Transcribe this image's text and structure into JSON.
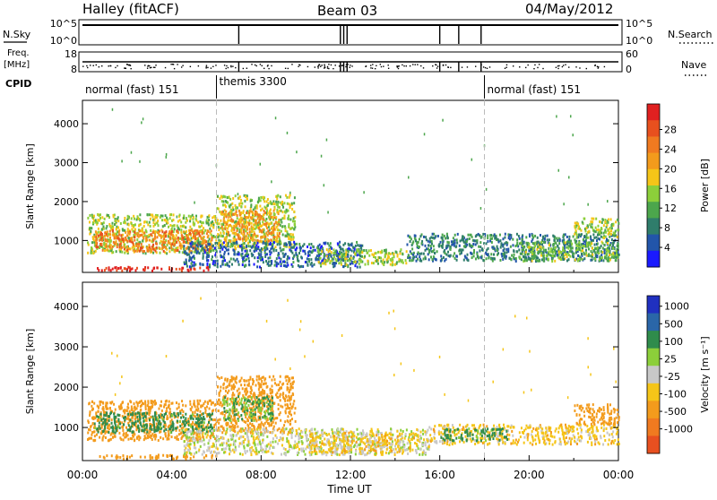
{
  "header": {
    "station": "Halley (fitACF)",
    "beam": "Beam 03",
    "date": "04/May/2012"
  },
  "status_panels": {
    "nsky_label": "N.Sky",
    "nsearch_label": "N.Search",
    "nsky_ticks": [
      "10^5",
      "10^0"
    ],
    "nsearch_ticks": [
      "10^5",
      "10^0"
    ],
    "freq_label_top": "Freq.",
    "freq_label_unit": "[MHz]",
    "freq_ticks": [
      "18",
      "8"
    ],
    "nave_label": "Nave",
    "nave_ticks": [
      "60",
      "0"
    ],
    "cpid_label": "CPID",
    "cpid_segments": [
      {
        "start_hour": 0,
        "end_hour": 6,
        "label": "normal (fast) 151"
      },
      {
        "start_hour": 6,
        "end_hour": 18,
        "label": "themis 3300"
      },
      {
        "start_hour": 18,
        "end_hour": 24,
        "label": "normal (fast) 151"
      }
    ],
    "data_gaps_hours": [
      7.0,
      11.55,
      11.7,
      11.85,
      16.0,
      16.85,
      17.85
    ]
  },
  "chart_data": [
    {
      "type": "heatmap",
      "name": "power",
      "ylabel": "Slant Range [km]",
      "xlabel": "Time UT",
      "xlim": [
        0,
        24
      ],
      "ylim": [
        180,
        4600
      ],
      "yticks": [
        "1000",
        "2000",
        "3000",
        "4000"
      ],
      "xticks": [
        "00:00",
        "04:00",
        "08:00",
        "12:00",
        "16:00",
        "20:00",
        "00:00"
      ],
      "colorbar_label": "Power [dB]",
      "colorbar_ticks": [
        "4",
        "8",
        "12",
        "16",
        "20",
        "24",
        "28"
      ],
      "colorbar_colors": [
        "#1a1aff",
        "#2255aa",
        "#2f7d6b",
        "#4ca64c",
        "#8ccf3a",
        "#f5c518",
        "#f39b1c",
        "#f07a20",
        "#e8501e",
        "#e02020"
      ],
      "mode_change_hours": [
        6,
        18
      ],
      "regions": [
        {
          "t0": 0.2,
          "t1": 6.0,
          "r0": 700,
          "r1": 1700,
          "value": 14
        },
        {
          "t0": 0.5,
          "t1": 5.8,
          "r0": 750,
          "r1": 1300,
          "value": 22
        },
        {
          "t0": 6.0,
          "t1": 9.5,
          "r0": 800,
          "r1": 2200,
          "value": 14
        },
        {
          "t0": 6.2,
          "t1": 8.8,
          "r0": 1000,
          "r1": 1800,
          "value": 20
        },
        {
          "t0": 0.6,
          "t1": 6.0,
          "r0": 250,
          "r1": 350,
          "value": 28
        },
        {
          "t0": 4.5,
          "t1": 12.5,
          "r0": 350,
          "r1": 1000,
          "value": 6
        },
        {
          "t0": 10.5,
          "t1": 14.5,
          "r0": 400,
          "r1": 800,
          "value": 14
        },
        {
          "t0": 14.5,
          "t1": 24.0,
          "r0": 500,
          "r1": 1200,
          "value": 8
        },
        {
          "t0": 19.5,
          "t1": 24.0,
          "r0": 500,
          "r1": 1000,
          "value": 12
        },
        {
          "t0": 22.0,
          "t1": 24.0,
          "r0": 1100,
          "r1": 1600,
          "value": 14
        }
      ]
    },
    {
      "type": "heatmap",
      "name": "velocity",
      "ylabel": "Slant Range [km]",
      "xlabel": "Time UT",
      "xlim": [
        0,
        24
      ],
      "ylim": [
        180,
        4600
      ],
      "yticks": [
        "1000",
        "2000",
        "3000",
        "4000"
      ],
      "xticks": [
        "00:00",
        "04:00",
        "08:00",
        "12:00",
        "16:00",
        "20:00",
        "00:00"
      ],
      "colorbar_label": "Velocity [m s⁻¹]",
      "colorbar_ticks": [
        "1000",
        "500",
        "100",
        "25",
        "-25",
        "-100",
        "-500",
        "-1000"
      ],
      "colorbar_colors": [
        "#2030c0",
        "#2a66a8",
        "#2f8c4c",
        "#8ccf3a",
        "#c8c8c8",
        "#f5c518",
        "#f39b1c",
        "#f07a20",
        "#e85020"
      ],
      "mode_change_hours": [
        6,
        18
      ],
      "regions": [
        {
          "t0": 0.2,
          "t1": 6.0,
          "r0": 700,
          "r1": 1700,
          "value": -300
        },
        {
          "t0": 0.5,
          "t1": 5.8,
          "r0": 900,
          "r1": 1400,
          "value": 150
        },
        {
          "t0": 6.0,
          "t1": 9.5,
          "r0": 900,
          "r1": 2300,
          "value": -300
        },
        {
          "t0": 6.2,
          "t1": 8.5,
          "r0": 1200,
          "r1": 1800,
          "value": 100
        },
        {
          "t0": 0.6,
          "t1": 6.0,
          "r0": 250,
          "r1": 350,
          "value": -300
        },
        {
          "t0": 4.5,
          "t1": 15.5,
          "r0": 350,
          "r1": 1000,
          "value": 0
        },
        {
          "t0": 10.0,
          "t1": 15.0,
          "r0": 400,
          "r1": 900,
          "value": -60
        },
        {
          "t0": 15.5,
          "t1": 24.0,
          "r0": 600,
          "r1": 1100,
          "value": -60
        },
        {
          "t0": 16.0,
          "t1": 19.0,
          "r0": 700,
          "r1": 1000,
          "value": 150
        },
        {
          "t0": 22.0,
          "t1": 24.0,
          "r0": 1100,
          "r1": 1600,
          "value": -300
        }
      ]
    }
  ]
}
